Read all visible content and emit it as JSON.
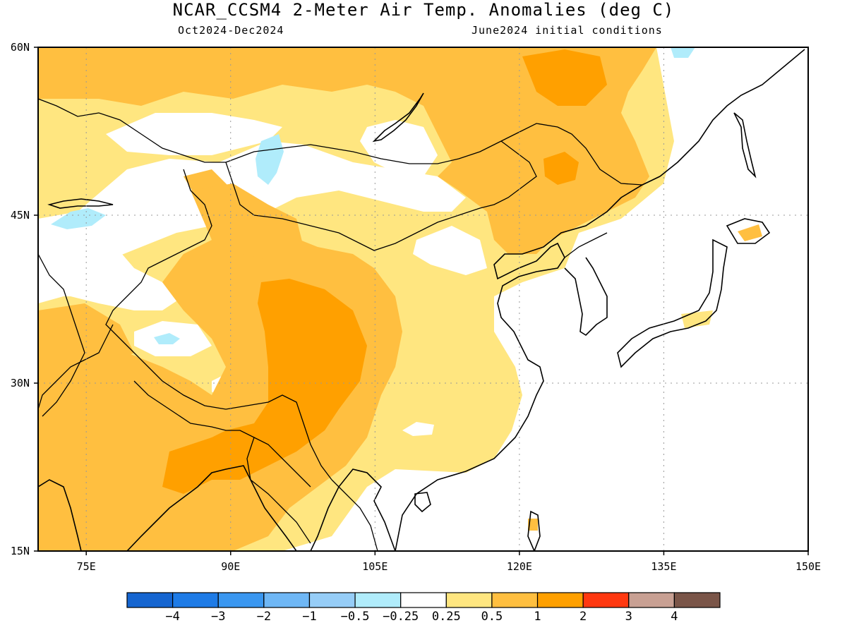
{
  "title": "NCAR_CCSM4 2-Meter Air Temp. Anomalies (deg C)",
  "subtitle_left": "Oct2024-Dec2024",
  "subtitle_right": "June2024 initial conditions",
  "lat_ticks": [
    {
      "label": "60N",
      "lat": 60
    },
    {
      "label": "45N",
      "lat": 45
    },
    {
      "label": "30N",
      "lat": 30
    },
    {
      "label": "15N",
      "lat": 15
    }
  ],
  "lon_ticks": [
    {
      "label": "75E",
      "lon": 75
    },
    {
      "label": "90E",
      "lon": 90
    },
    {
      "label": "105E",
      "lon": 105
    },
    {
      "label": "120E",
      "lon": 120
    },
    {
      "label": "135E",
      "lon": 135
    },
    {
      "label": "150E",
      "lon": 150
    }
  ],
  "map_extent": {
    "lon_min": 70,
    "lon_max": 150,
    "lat_min": 15,
    "lat_max": 60
  },
  "colorbar": {
    "colors": [
      "#1565d0",
      "#1e7be6",
      "#3a97f0",
      "#6fb7f5",
      "#96cdf7",
      "#b0ecfb",
      "#ffffff",
      "#ffe680",
      "#ffbf40",
      "#ffa000",
      "#ff3810",
      "#c8a093",
      "#7a5548"
    ],
    "labels": [
      "-4",
      "-3",
      "-2",
      "-1",
      "-0.5",
      "-0.25",
      "0.25",
      "0.5",
      "1",
      "2",
      "3",
      "4"
    ]
  },
  "colors": {
    "anomaly_0_5_1": "#ffbf40",
    "anomaly_0_25_0_5": "#ffe680",
    "anomaly_1_2": "#ffa000",
    "anomaly_neg_0_5_neg_0_25": "#b0ecfb",
    "neutral": "#ffffff"
  }
}
